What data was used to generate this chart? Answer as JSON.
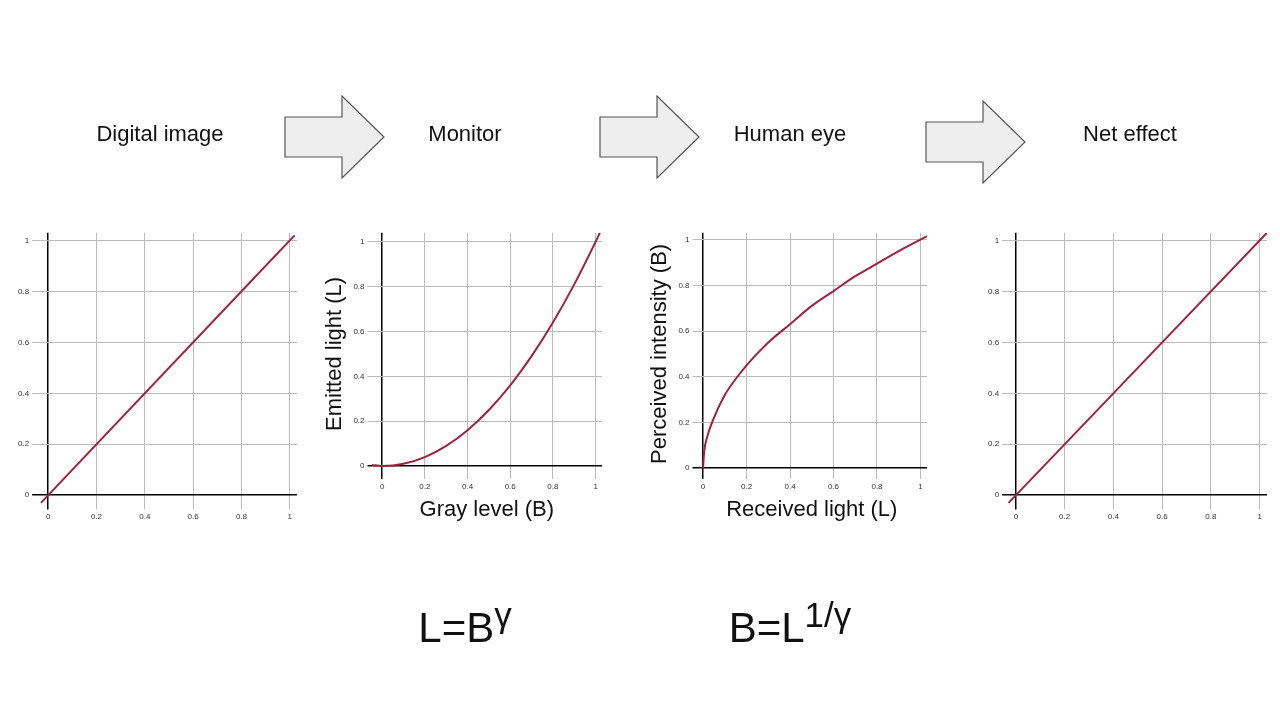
{
  "chart_data": [
    {
      "type": "line",
      "title": "Digital image",
      "x": [
        -0.03,
        1.02
      ],
      "series": [
        {
          "color": "#a3213f",
          "values": [
            -0.03,
            1.02
          ]
        }
      ],
      "xlim": [
        -0.05,
        1.03
      ],
      "ylim": [
        -0.04,
        1.03
      ],
      "xticks": [
        0,
        0.2,
        0.4,
        0.6,
        0.8,
        1
      ],
      "yticks": [
        0,
        0.2,
        0.4,
        0.6,
        0.8,
        1
      ],
      "grid": true,
      "legend": false,
      "marker": "none"
    },
    {
      "type": "line",
      "title": "Monitor",
      "xlabel": "Gray level (B)",
      "ylabel": "Emitted light (L)",
      "annotations": [
        "L=B$^{γ}$"
      ],
      "x": [
        -0.05,
        0,
        0.1,
        0.2,
        0.3,
        0.4,
        0.5,
        0.6,
        0.7,
        0.8,
        0.9,
        1,
        1.02
      ],
      "series": [
        {
          "color": "#a3213f",
          "values": [
            0.005,
            0,
            0.01,
            0.04,
            0.09,
            0.16,
            0.25,
            0.36,
            0.49,
            0.64,
            0.81,
            1,
            1.04
          ]
        }
      ],
      "xlim": [
        -0.05,
        1.03
      ],
      "ylim": [
        -0.04,
        1.04
      ],
      "xticks": [
        0,
        0.2,
        0.4,
        0.6,
        0.8,
        1
      ],
      "yticks": [
        0,
        0.2,
        0.4,
        0.6,
        0.8,
        1
      ],
      "grid": true,
      "legend": false,
      "marker": "none"
    },
    {
      "type": "line",
      "title": "Human eye",
      "xlabel": "Received light (L)",
      "ylabel": "Perceived intensity (B)",
      "annotations": [
        "B=L$^{1/γ}$"
      ],
      "x": [
        0,
        0.005,
        0.02,
        0.05,
        0.1,
        0.15,
        0.2,
        0.3,
        0.4,
        0.5,
        0.6,
        0.7,
        0.8,
        0.9,
        1,
        1.03
      ],
      "series": [
        {
          "color": "#a3213f",
          "values": [
            0,
            0.07,
            0.14,
            0.22,
            0.32,
            0.39,
            0.45,
            0.55,
            0.63,
            0.71,
            0.775,
            0.84,
            0.895,
            0.95,
            1,
            1.015
          ]
        }
      ],
      "xlim": [
        -0.03,
        1.03
      ],
      "ylim": [
        -0.03,
        1.03
      ],
      "xticks": [
        0,
        0.2,
        0.4,
        0.6,
        0.8,
        1
      ],
      "yticks": [
        0,
        0.2,
        0.4,
        0.6,
        0.8,
        1
      ],
      "grid": true,
      "legend": false,
      "marker": "none"
    },
    {
      "type": "line",
      "title": "Net effect",
      "x": [
        -0.03,
        1.03
      ],
      "series": [
        {
          "color": "#a3213f",
          "values": [
            -0.03,
            1.03
          ]
        }
      ],
      "xlim": [
        -0.04,
        1.03
      ],
      "ylim": [
        -0.04,
        1.03
      ],
      "xticks": [
        0,
        0.2,
        0.4,
        0.6,
        0.8,
        1
      ],
      "yticks": [
        0,
        0.2,
        0.4,
        0.6,
        0.8,
        1
      ],
      "grid": true,
      "legend": false,
      "marker": "none"
    }
  ]
}
